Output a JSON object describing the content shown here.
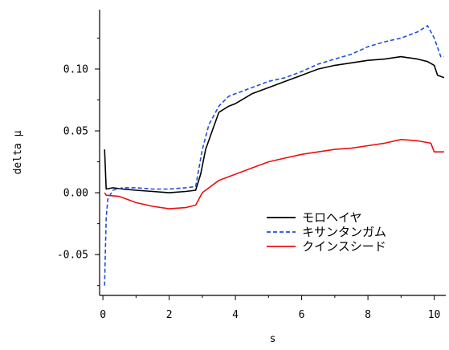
{
  "chart_data": {
    "type": "line",
    "title": "",
    "xlabel": "s",
    "ylabel": "delta μ",
    "xlim": [
      -0.1,
      10.35
    ],
    "ylim": [
      -0.083,
      0.148
    ],
    "xticks": [
      0,
      2,
      4,
      6,
      8,
      10
    ],
    "yticks": [
      -0.05,
      0.0,
      0.05,
      0.1
    ],
    "xtick_labels": [
      "0",
      "2",
      "4",
      "6",
      "8",
      "10"
    ],
    "ytick_labels": [
      "-0.05",
      "0.00",
      "0.05",
      "0.10"
    ],
    "grid": false,
    "legend_position": "lower-right",
    "series": [
      {
        "name": "モロヘイヤ",
        "color": "#000000",
        "dash": "solid",
        "x": [
          0.05,
          0.1,
          0.3,
          0.6,
          1.0,
          1.5,
          2.0,
          2.5,
          2.8,
          2.95,
          3.1,
          3.3,
          3.5,
          3.8,
          4.0,
          4.5,
          5.0,
          5.5,
          6.0,
          6.5,
          7.0,
          7.5,
          8.0,
          8.5,
          9.0,
          9.5,
          9.8,
          10.0,
          10.1,
          10.3
        ],
        "y": [
          0.035,
          0.003,
          0.004,
          0.003,
          0.002,
          0.001,
          0.0,
          0.001,
          0.002,
          0.015,
          0.035,
          0.05,
          0.065,
          0.07,
          0.072,
          0.08,
          0.085,
          0.09,
          0.095,
          0.1,
          0.103,
          0.105,
          0.107,
          0.108,
          0.11,
          0.108,
          0.106,
          0.103,
          0.095,
          0.093
        ]
      },
      {
        "name": "キサンタンガム",
        "color": "#1f4fd6",
        "dash": "dashed",
        "x": [
          0.05,
          0.1,
          0.15,
          0.3,
          0.6,
          1.0,
          1.5,
          2.0,
          2.5,
          2.8,
          3.0,
          3.2,
          3.5,
          3.8,
          4.0,
          4.5,
          5.0,
          5.5,
          6.0,
          6.5,
          7.0,
          7.5,
          8.0,
          8.5,
          9.0,
          9.5,
          9.8,
          10.0,
          10.2,
          10.3
        ],
        "y": [
          -0.075,
          -0.02,
          -0.005,
          0.002,
          0.004,
          0.004,
          0.003,
          0.003,
          0.004,
          0.005,
          0.035,
          0.055,
          0.07,
          0.078,
          0.08,
          0.085,
          0.09,
          0.093,
          0.098,
          0.104,
          0.108,
          0.112,
          0.118,
          0.122,
          0.125,
          0.13,
          0.135,
          0.125,
          0.11,
          0.11
        ]
      },
      {
        "name": "クインスシード",
        "color": "#e81010",
        "dash": "solid",
        "x": [
          0.05,
          0.1,
          0.5,
          1.0,
          1.5,
          2.0,
          2.5,
          2.8,
          3.0,
          3.5,
          4.0,
          4.5,
          5.0,
          5.5,
          6.0,
          6.5,
          7.0,
          7.5,
          8.0,
          8.5,
          9.0,
          9.5,
          9.9,
          10.0,
          10.1,
          10.3
        ],
        "y": [
          0.0,
          -0.002,
          -0.003,
          -0.008,
          -0.011,
          -0.013,
          -0.012,
          -0.01,
          0.0,
          0.01,
          0.015,
          0.02,
          0.025,
          0.028,
          0.031,
          0.033,
          0.035,
          0.036,
          0.038,
          0.04,
          0.043,
          0.042,
          0.04,
          0.033,
          0.033,
          0.033
        ]
      }
    ]
  }
}
